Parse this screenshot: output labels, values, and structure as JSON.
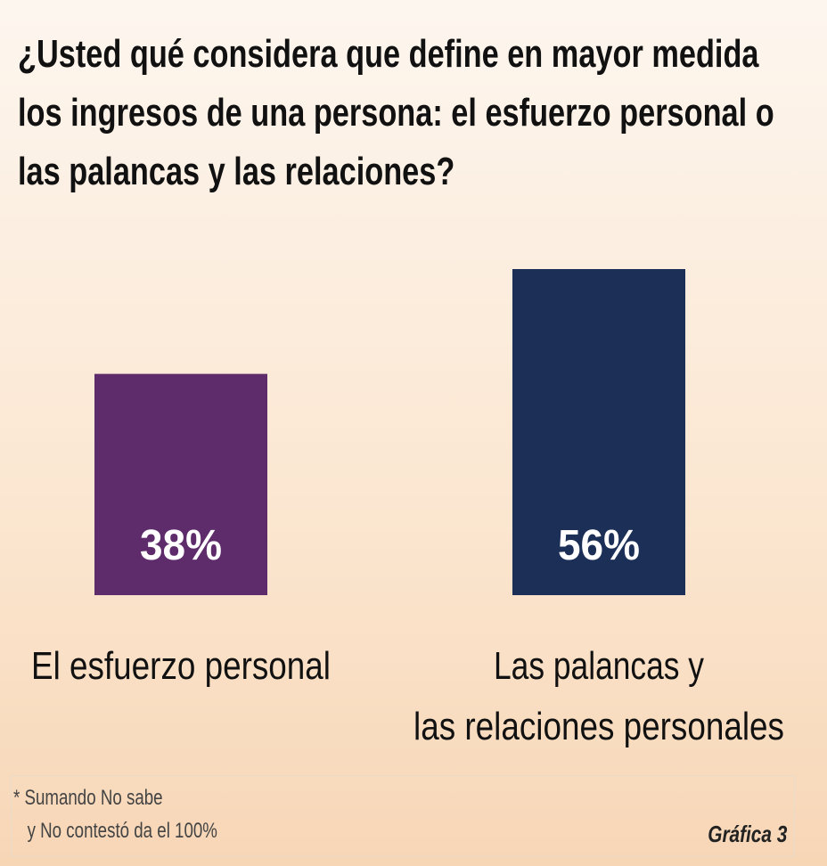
{
  "title": "¿Usted qué considera que define en mayor medida los ingresos de una persona: el esfuerzo personal o las palancas y las relaciones?",
  "chart_data": {
    "type": "bar",
    "categories": [
      "El esfuerzo personal",
      "Las palancas y las relaciones personales"
    ],
    "category_lines": [
      [
        "El esfuerzo personal"
      ],
      [
        "Las palancas y",
        "las relaciones personales"
      ]
    ],
    "values": [
      38,
      56
    ],
    "value_labels": [
      "38%",
      "56%"
    ],
    "colors": [
      "#5e2c6b",
      "#1b2f57"
    ],
    "ylim": [
      0,
      56
    ],
    "grid": false,
    "axes": false
  },
  "note": {
    "line1": "* Sumando No sabe",
    "line2": "y No contestó da el 100%"
  },
  "figure_label": "Gráfica 3"
}
